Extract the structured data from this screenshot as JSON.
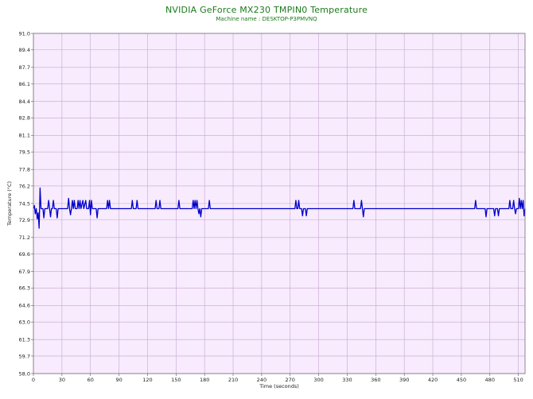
{
  "chart_data": {
    "type": "line",
    "title": "NVIDIA GeForce MX230 TMPIN0 Temperature",
    "subtitle": "Machine name : DESKTOP-P3PMVNQ",
    "xlabel": "Time (seconds)",
    "ylabel": "Temperature (°C)",
    "xlim": [
      0,
      517
    ],
    "ylim": [
      58.0,
      91.0
    ],
    "x_ticks": [
      "0",
      "30",
      "60",
      "90",
      "120",
      "150",
      "180",
      "210",
      "240",
      "270",
      "300",
      "330",
      "360",
      "390",
      "420",
      "450",
      "480",
      "510"
    ],
    "y_ticks": [
      "91.0",
      "89.4",
      "87.7",
      "86.1",
      "84.4",
      "82.8",
      "81.1",
      "79.5",
      "77.8",
      "76.2",
      "74.5",
      "72.9",
      "71.2",
      "69.6",
      "67.9",
      "66.3",
      "64.6",
      "63.0",
      "61.3",
      "59.7",
      "58.0"
    ],
    "grid": true,
    "colors": {
      "plot_background": "#f7ebfd",
      "grid": "#c4a8cc",
      "line": "#0000cc",
      "title": "#1c7a1c"
    },
    "series": [
      {
        "values": [
          [
            0,
            74.0
          ],
          [
            1,
            74.3
          ],
          [
            2,
            73.5
          ],
          [
            3,
            74.0
          ],
          [
            4,
            73.0
          ],
          [
            5,
            73.6
          ],
          [
            6,
            72.1
          ],
          [
            7,
            76.0
          ],
          [
            8,
            74.0
          ],
          [
            10,
            74.0
          ],
          [
            11,
            73.1
          ],
          [
            12,
            74.0
          ],
          [
            15,
            74.0
          ],
          [
            16,
            74.8
          ],
          [
            17,
            74.0
          ],
          [
            18,
            73.2
          ],
          [
            19,
            74.0
          ],
          [
            20,
            74.0
          ],
          [
            21,
            74.8
          ],
          [
            22,
            74.0
          ],
          [
            24,
            74.0
          ],
          [
            25,
            73.1
          ],
          [
            26,
            74.0
          ],
          [
            36,
            74.0
          ],
          [
            37,
            75.0
          ],
          [
            38,
            74.0
          ],
          [
            39,
            73.4
          ],
          [
            40,
            74.0
          ],
          [
            41,
            74.8
          ],
          [
            42,
            74.0
          ],
          [
            43,
            74.8
          ],
          [
            44,
            74.0
          ],
          [
            46,
            74.0
          ],
          [
            47,
            74.8
          ],
          [
            48,
            74.0
          ],
          [
            49,
            74.8
          ],
          [
            50,
            74.0
          ],
          [
            52,
            74.8
          ],
          [
            53,
            74.0
          ],
          [
            55,
            74.8
          ],
          [
            56,
            74.0
          ],
          [
            58,
            74.0
          ],
          [
            59,
            74.8
          ],
          [
            60,
            73.4
          ],
          [
            61,
            74.8
          ],
          [
            62,
            74.0
          ],
          [
            66,
            74.0
          ],
          [
            67,
            73.1
          ],
          [
            68,
            74.0
          ],
          [
            77,
            74.0
          ],
          [
            78,
            74.8
          ],
          [
            79,
            74.0
          ],
          [
            80,
            74.8
          ],
          [
            81,
            74.0
          ],
          [
            103,
            74.0
          ],
          [
            104,
            74.8
          ],
          [
            105,
            74.0
          ],
          [
            108,
            74.0
          ],
          [
            109,
            74.8
          ],
          [
            110,
            74.0
          ],
          [
            128,
            74.0
          ],
          [
            129,
            74.8
          ],
          [
            130,
            74.0
          ],
          [
            132,
            74.0
          ],
          [
            133,
            74.8
          ],
          [
            134,
            74.0
          ],
          [
            152,
            74.0
          ],
          [
            153,
            74.8
          ],
          [
            154,
            74.0
          ],
          [
            167,
            74.0
          ],
          [
            168,
            74.8
          ],
          [
            169,
            74.0
          ],
          [
            170,
            74.8
          ],
          [
            171,
            74.0
          ],
          [
            172,
            74.8
          ],
          [
            173,
            74.0
          ],
          [
            174,
            73.5
          ],
          [
            175,
            74.0
          ],
          [
            176,
            73.2
          ],
          [
            177,
            74.0
          ],
          [
            184,
            74.0
          ],
          [
            185,
            74.8
          ],
          [
            186,
            74.0
          ],
          [
            275,
            74.0
          ],
          [
            276,
            74.8
          ],
          [
            277,
            74.0
          ],
          [
            278,
            74.0
          ],
          [
            279,
            74.8
          ],
          [
            280,
            74.0
          ],
          [
            282,
            74.0
          ],
          [
            283,
            73.3
          ],
          [
            284,
            74.0
          ],
          [
            286,
            74.0
          ],
          [
            287,
            73.3
          ],
          [
            288,
            74.0
          ],
          [
            336,
            74.0
          ],
          [
            337,
            74.8
          ],
          [
            338,
            74.0
          ],
          [
            344,
            74.0
          ],
          [
            345,
            74.8
          ],
          [
            346,
            74.0
          ],
          [
            347,
            73.2
          ],
          [
            348,
            74.0
          ],
          [
            464,
            74.0
          ],
          [
            465,
            74.8
          ],
          [
            466,
            74.0
          ],
          [
            475,
            74.0
          ],
          [
            476,
            73.2
          ],
          [
            477,
            74.0
          ],
          [
            484,
            74.0
          ],
          [
            485,
            73.3
          ],
          [
            486,
            74.0
          ],
          [
            488,
            74.0
          ],
          [
            489,
            73.3
          ],
          [
            490,
            74.0
          ],
          [
            500,
            74.0
          ],
          [
            501,
            74.8
          ],
          [
            502,
            74.0
          ],
          [
            504,
            74.0
          ],
          [
            505,
            74.8
          ],
          [
            506,
            74.0
          ],
          [
            507,
            73.5
          ],
          [
            508,
            74.0
          ],
          [
            510,
            74.0
          ],
          [
            511,
            75.0
          ],
          [
            512,
            74.0
          ],
          [
            513,
            74.8
          ],
          [
            514,
            74.0
          ],
          [
            515,
            74.8
          ],
          [
            516,
            73.3
          ],
          [
            517,
            74.0
          ]
        ]
      }
    ]
  }
}
